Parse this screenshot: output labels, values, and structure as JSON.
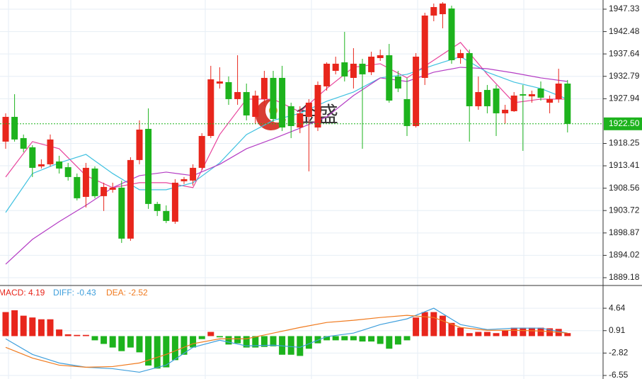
{
  "chart_data": [
    {
      "type": "candlestick",
      "watermark": "金盛",
      "up_color": "#e8261c",
      "down_color": "#1db31d",
      "open": [
        1918.65,
        1924.01,
        1919.41,
        1917.42,
        1913.28,
        1913.74,
        1914.35,
        1913.12,
        1910.98,
        1906.68,
        1912.82,
        1906.84,
        1908.22,
        1908.68,
        1897.64,
        1914.66,
        1921.41,
        1905.15,
        1903.62,
        1901.31,
        1910.06,
        1910.21,
        1912.97,
        1919.87,
        1931.22,
        1931.53,
        1927.85,
        1929.38,
        1924.01,
        1927.85,
        1932.45,
        1932.45,
        1926.31,
        1921.71,
        1924.01,
        1921.71,
        1930.61,
        1933.98,
        1935.82,
        1932.45,
        1935.52,
        1933.68,
        1936.74,
        1937.36,
        1932.76,
        1927.85,
        1922.02,
        1932.45,
        1945.95,
        1946.25,
        1947.48,
        1936.74,
        1937.82,
        1926.31,
        1929.84,
        1930.15,
        1924.78,
        1925.24,
        1928.92,
        1928.46,
        1930.15,
        1927.08,
        1927.85,
        1931.22
      ],
      "high": [
        1924.78,
        1928.92,
        1920.18,
        1917.88,
        1914.81,
        1920.18,
        1915.58,
        1914.04,
        1911.74,
        1914.04,
        1913.28,
        1909.75,
        1909.75,
        1910.21,
        1915.27,
        1923.25,
        1925.85,
        1905.61,
        1904.84,
        1910.52,
        1910.98,
        1913.74,
        1920.49,
        1935.06,
        1934.75,
        1932.76,
        1937.36,
        1931.22,
        1929.69,
        1933.98,
        1933.98,
        1935.06,
        1927.08,
        1926.31,
        1927.85,
        1931.68,
        1935.82,
        1937.05,
        1942.42,
        1938.89,
        1936.59,
        1938.12,
        1938.58,
        1939.81,
        1933.98,
        1932.45,
        1937.82,
        1946.56,
        1948.55,
        1948.86,
        1948.09,
        1938.58,
        1938.58,
        1932.76,
        1930.92,
        1930.92,
        1926.62,
        1929.38,
        1930.92,
        1929.69,
        1931.68,
        1928.62,
        1934.44,
        1931.99
      ],
      "low": [
        1917.11,
        1918.65,
        1916.35,
        1910.98,
        1912.82,
        1913.28,
        1911.74,
        1910.21,
        1905.92,
        1904.39,
        1906.38,
        1903.62,
        1907.6,
        1896.71,
        1897.17,
        1913.74,
        1904.08,
        1902.54,
        1901.01,
        1900.85,
        1909.44,
        1909.14,
        1912.51,
        1919.41,
        1930.15,
        1926.62,
        1926.62,
        1923.25,
        1922.48,
        1926.31,
        1922.94,
        1920.95,
        1919.41,
        1920.49,
        1912.21,
        1920.95,
        1929.69,
        1933.22,
        1931.68,
        1930.15,
        1917.11,
        1933.06,
        1936.13,
        1927.08,
        1929.38,
        1919.87,
        1921.71,
        1930.92,
        1944.72,
        1943.19,
        1935.52,
        1935.52,
        1918.65,
        1925.55,
        1924.78,
        1919.87,
        1922.48,
        1925.09,
        1916.65,
        1927.08,
        1927.54,
        1924.78,
        1927.08,
        1920.64
      ],
      "close": [
        1924.01,
        1919.11,
        1917.11,
        1912.97,
        1913.74,
        1919.11,
        1912.82,
        1910.98,
        1906.38,
        1912.97,
        1906.84,
        1908.83,
        1908.68,
        1897.64,
        1914.66,
        1921.25,
        1905.15,
        1903.62,
        1901.47,
        1909.75,
        1910.52,
        1912.97,
        1919.87,
        1932.14,
        1931.68,
        1927.85,
        1929.38,
        1924.32,
        1928.62,
        1932.45,
        1923.55,
        1921.71,
        1922.02,
        1924.78,
        1927.08,
        1930.92,
        1935.52,
        1935.52,
        1932.76,
        1935.52,
        1933.22,
        1937.05,
        1937.36,
        1927.54,
        1930.15,
        1922.02,
        1937.05,
        1945.95,
        1947.79,
        1948.55,
        1936.28,
        1937.82,
        1926.31,
        1929.38,
        1926.31,
        1924.78,
        1925.55,
        1928.62,
        1928.62,
        1928.92,
        1928.16,
        1927.85,
        1931.22,
        1922.48
      ],
      "lines": [
        {
          "color": "#e8449c",
          "x": [
            0,
            3,
            6,
            9,
            12,
            15,
            18,
            21,
            24,
            27,
            30,
            33,
            36,
            39,
            42,
            45,
            48,
            51,
            54,
            57,
            60,
            63
          ],
          "values": [
            1910.98,
            1918.65,
            1917.11,
            1911.28,
            1908.68,
            1909.75,
            1909.75,
            1908.68,
            1920.18,
            1927.85,
            1927.85,
            1925.09,
            1930.15,
            1934.75,
            1935.52,
            1932.45,
            1936.28,
            1940.12,
            1933.22,
            1927.08,
            1927.85,
            1927.85
          ]
        },
        {
          "color": "#3fc1e0",
          "x": [
            0,
            3,
            6,
            9,
            12,
            15,
            18,
            21,
            24,
            27,
            30,
            33,
            36,
            39,
            42,
            45,
            48,
            51,
            54,
            57,
            60,
            63
          ],
          "values": [
            1903.31,
            1911.74,
            1914.04,
            1915.88,
            1911.74,
            1908.22,
            1908.22,
            1909.75,
            1914.04,
            1920.18,
            1923.25,
            1924.78,
            1927.39,
            1929.38,
            1932.45,
            1933.22,
            1935.21,
            1937.05,
            1933.68,
            1931.53,
            1930.15,
            1927.85
          ]
        },
        {
          "color": "#b43cc4",
          "x": [
            0,
            3,
            6,
            9,
            12,
            15,
            18,
            21,
            24,
            27,
            30,
            33,
            36,
            39,
            42,
            45,
            48,
            51,
            54,
            57,
            60,
            63
          ],
          "values": [
            1892.11,
            1897.48,
            1901.31,
            1904.84,
            1908.68,
            1911.28,
            1912.05,
            1911.28,
            1913.74,
            1917.11,
            1919.26,
            1921.56,
            1924.01,
            1928.62,
            1932.45,
            1931.68,
            1933.68,
            1934.75,
            1934.44,
            1933.52,
            1932.45,
            1931.68
          ]
        }
      ],
      "current_price": {
        "value": 1922.5,
        "label": "1922.50"
      },
      "current_color": "#1db31d",
      "ylim": [
        1887.95,
        1949.32
      ],
      "yticks": [
        1947.33,
        1942.48,
        1937.64,
        1932.79,
        1927.94,
        1918.25,
        1913.41,
        1908.56,
        1903.72,
        1898.87,
        1894.02,
        1889.18
      ],
      "grid": true
    },
    {
      "type": "macd",
      "histogram": {
        "name": "MACD: 4.19",
        "up_color": "#e8261c",
        "down_color": "#1db31d",
        "values": [
          4.0,
          4.3,
          3.4,
          3.1,
          2.8,
          2.8,
          1.1,
          0.3,
          0.2,
          0.2,
          -0.7,
          -1.3,
          -1.9,
          -2.5,
          -1.9,
          -2.7,
          -4.9,
          -5.4,
          -5.2,
          -4.0,
          -3.1,
          -1.9,
          -0.5,
          0.7,
          -0.2,
          -1.4,
          -1.2,
          -1.9,
          -1.9,
          -1.8,
          -1.7,
          -3.1,
          -3.1,
          -3.3,
          -2.1,
          -1.2,
          -0.7,
          -0.7,
          -0.7,
          -0.7,
          -0.9,
          -0.9,
          -1.3,
          -2.1,
          -1.4,
          -0.7,
          3.1,
          4.0,
          4.0,
          3.4,
          2.2,
          1.4,
          0.5,
          0.7,
          0.7,
          0.5,
          0.9,
          1.4,
          1.4,
          1.4,
          1.4,
          1.3,
          1.2,
          0.5
        ]
      },
      "series": [
        {
          "name": "DIFF: -0.43",
          "color": "#3f9fdc",
          "x": [
            0,
            3,
            6,
            9,
            12,
            15,
            18,
            21,
            24,
            27,
            30,
            33,
            36,
            39,
            42,
            45,
            48,
            51,
            54,
            57,
            60,
            63
          ],
          "values": [
            -0.45,
            -3.05,
            -4.47,
            -5.18,
            -5.42,
            -6.01,
            -4.82,
            -1.87,
            -0.69,
            -1.63,
            -1.51,
            -1.87,
            -0.09,
            0.5,
            1.92,
            2.87,
            4.64,
            1.92,
            1.09,
            1.33,
            1.33,
            0.5
          ]
        },
        {
          "name": "DEA: -2.52",
          "color": "#f07a1e",
          "x": [
            0,
            3,
            6,
            9,
            12,
            15,
            18,
            21,
            24,
            27,
            30,
            33,
            36,
            39,
            42,
            45,
            48,
            51,
            54,
            57,
            60,
            63
          ],
          "values": [
            -1.87,
            -3.65,
            -4.83,
            -5.18,
            -5.07,
            -4.47,
            -3.05,
            -1.27,
            -0.45,
            -0.45,
            0.5,
            1.44,
            2.27,
            2.63,
            3.1,
            3.46,
            3.1,
            1.44,
            0.97,
            0.97,
            0.85,
            0.5
          ]
        }
      ],
      "ylim": [
        -7.14,
        8.19
      ],
      "yticks": [
        4.64,
        0.91,
        -2.82,
        -6.55
      ],
      "grid": true
    }
  ]
}
